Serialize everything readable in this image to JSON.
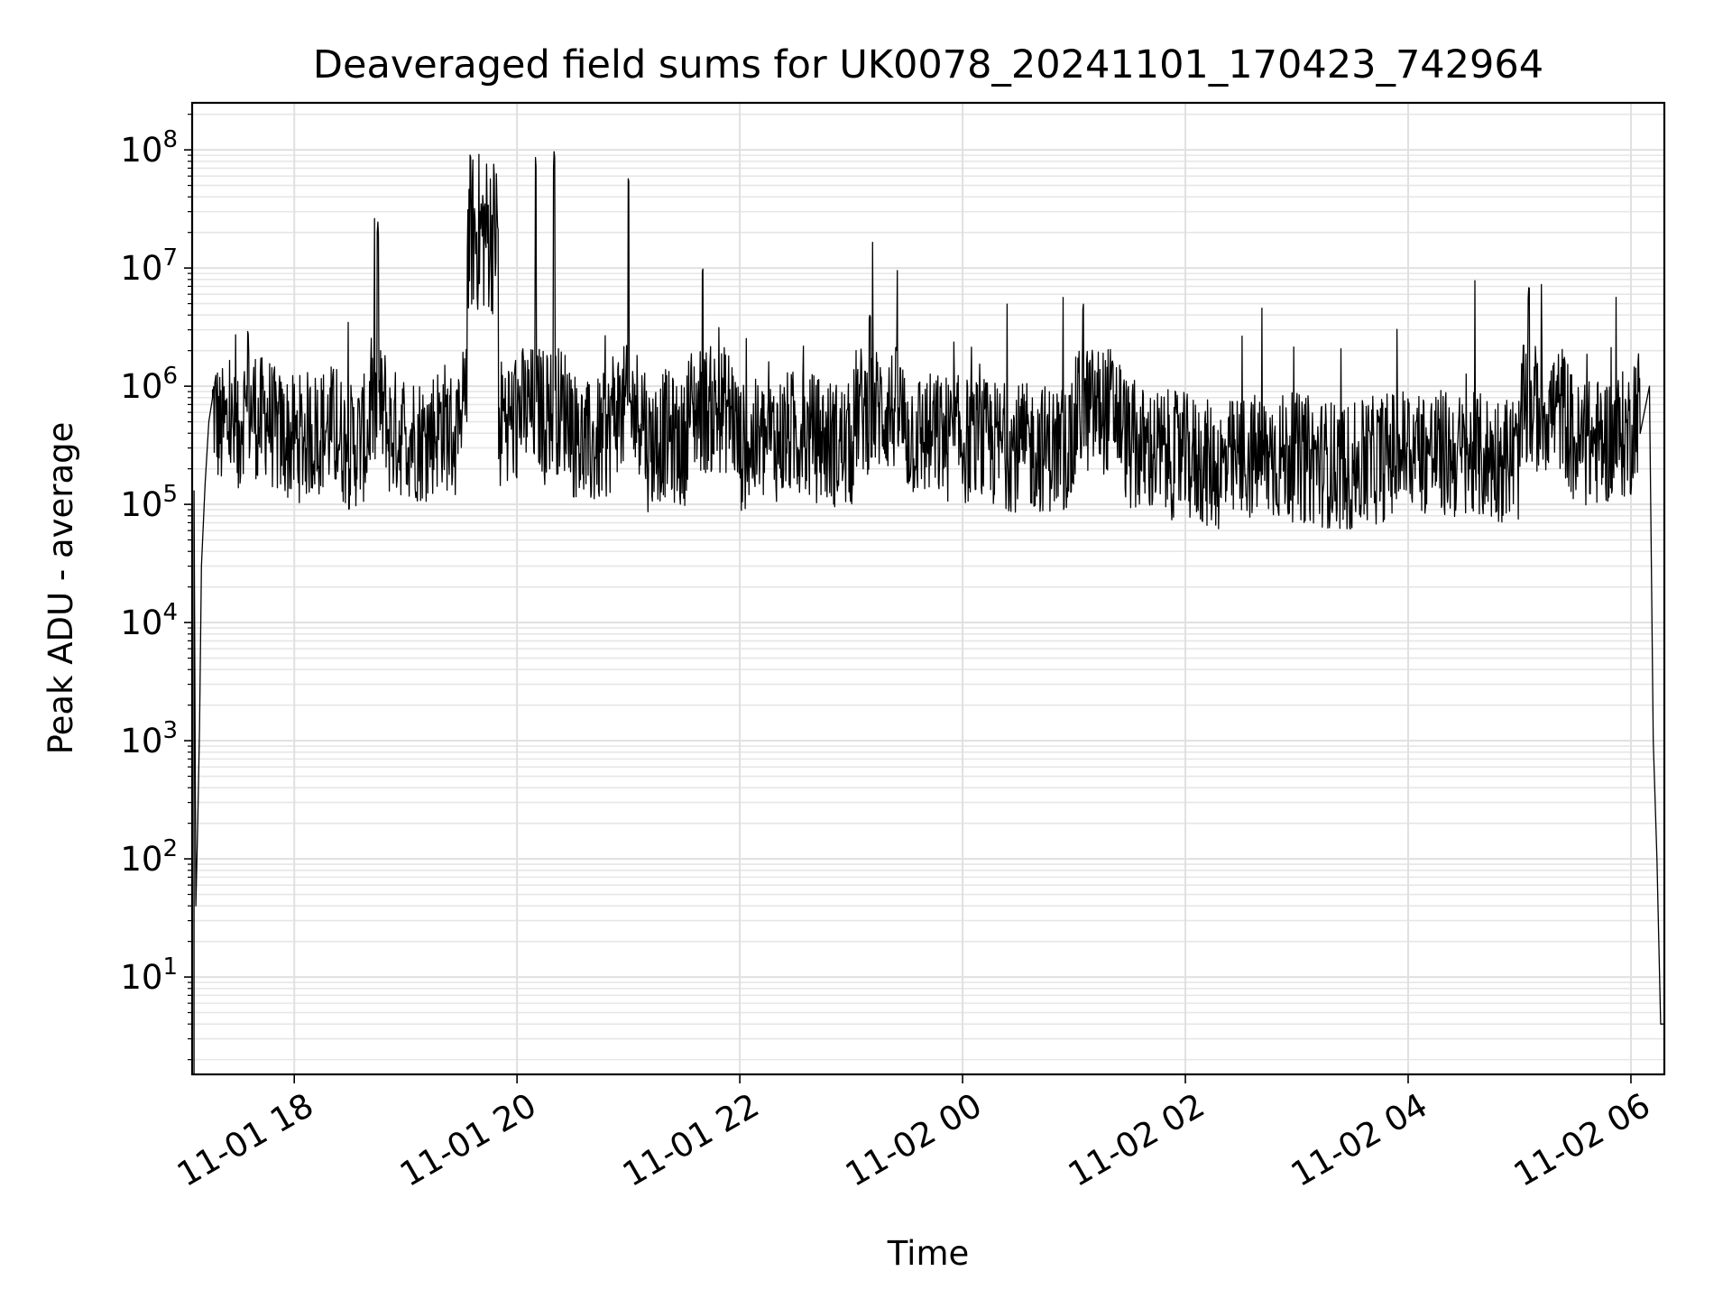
{
  "chart_data": {
    "type": "line",
    "title": "Deaveraged field sums for UK0078_20241101_170423_742964",
    "xlabel": "Time",
    "ylabel": "Peak ADU - average",
    "x_scale": "time",
    "y_scale": "log",
    "xlim": [
      "2024-11-01 17:05",
      "2024-11-02 06:18"
    ],
    "ylim": [
      1.5,
      250000000.0
    ],
    "grid": true,
    "x_ticks": [
      "11-01 18",
      "11-01 20",
      "11-01 22",
      "11-02 00",
      "11-02 02",
      "11-02 04",
      "11-02 06"
    ],
    "y_ticks": [
      {
        "base": "10",
        "exp": "1",
        "value": 10
      },
      {
        "base": "10",
        "exp": "2",
        "value": 100
      },
      {
        "base": "10",
        "exp": "3",
        "value": 1000
      },
      {
        "base": "10",
        "exp": "4",
        "value": 10000
      },
      {
        "base": "10",
        "exp": "5",
        "value": 100000
      },
      {
        "base": "10",
        "exp": "6",
        "value": 1000000
      },
      {
        "base": "10",
        "exp": "7",
        "value": 10000000
      },
      {
        "base": "10",
        "exp": "8",
        "value": 100000000
      }
    ],
    "line_color": "#000000",
    "series": [
      {
        "x": [
          "2024-11-01 17:06",
          "2024-11-01 17:07",
          "2024-11-01 17:08",
          "2024-11-01 17:09",
          "2024-11-01 17:10",
          "2024-11-01 17:12",
          "2024-11-01 17:14",
          "2024-11-01 17:16",
          "2024-11-01 17:20",
          "2024-11-01 17:25",
          "2024-11-01 17:30",
          "2024-11-01 17:35",
          "2024-11-01 17:40",
          "2024-11-01 17:45",
          "2024-11-01 17:50",
          "2024-11-01 18:00",
          "2024-11-01 18:10",
          "2024-11-01 18:20",
          "2024-11-01 18:30",
          "2024-11-01 18:40",
          "2024-11-01 18:45",
          "2024-11-01 18:50",
          "2024-11-01 19:00",
          "2024-11-01 19:10",
          "2024-11-01 19:20",
          "2024-11-01 19:30",
          "2024-11-01 19:35",
          "2024-11-01 19:40",
          "2024-11-01 19:45",
          "2024-11-01 19:50",
          "2024-11-01 19:52",
          "2024-11-01 20:00",
          "2024-11-01 20:10",
          "2024-11-01 20:15",
          "2024-11-01 20:20",
          "2024-11-01 20:30",
          "2024-11-01 20:40",
          "2024-11-01 20:50",
          "2024-11-01 21:00",
          "2024-11-01 21:10",
          "2024-11-01 21:20",
          "2024-11-01 21:30",
          "2024-11-01 21:40",
          "2024-11-01 22:00",
          "2024-11-01 22:30",
          "2024-11-01 23:00",
          "2024-11-01 23:10",
          "2024-11-01 23:30",
          "2024-11-02 00:00",
          "2024-11-02 00:30",
          "2024-11-02 01:00",
          "2024-11-02 01:05",
          "2024-11-02 01:30",
          "2024-11-02 02:00",
          "2024-11-02 02:20",
          "2024-11-02 02:30",
          "2024-11-02 03:00",
          "2024-11-02 03:30",
          "2024-11-02 04:00",
          "2024-11-02 04:30",
          "2024-11-02 05:00",
          "2024-11-02 05:05",
          "2024-11-02 05:30",
          "2024-11-02 06:00",
          "2024-11-02 06:05",
          "2024-11-02 06:10",
          "2024-11-02 06:12",
          "2024-11-02 06:14",
          "2024-11-02 06:16",
          "2024-11-02 06:18"
        ],
        "y": [
          130000,
          40,
          200,
          1300,
          30000,
          150000,
          500000,
          800000,
          400000,
          500000,
          300000,
          3000000,
          450000,
          600000,
          400000,
          350000,
          400000,
          450000,
          300000,
          380000,
          25000000,
          400000,
          400000,
          350000,
          500000,
          300000,
          60000000,
          5000000,
          40000000,
          300000,
          600000,
          500000,
          90000000,
          400000,
          100000000,
          400000,
          300000,
          400000,
          60000000,
          300000,
          400000,
          300000,
          10000000,
          300000,
          400000,
          300000,
          4000000,
          400000,
          350000,
          300000,
          300000,
          5000000,
          300000,
          250000,
          200000,
          250000,
          250000,
          200000,
          300000,
          250000,
          250000,
          7000000,
          300000,
          400000,
          1500000,
          1000000,
          1000,
          100,
          4,
          4
        ]
      }
    ]
  }
}
